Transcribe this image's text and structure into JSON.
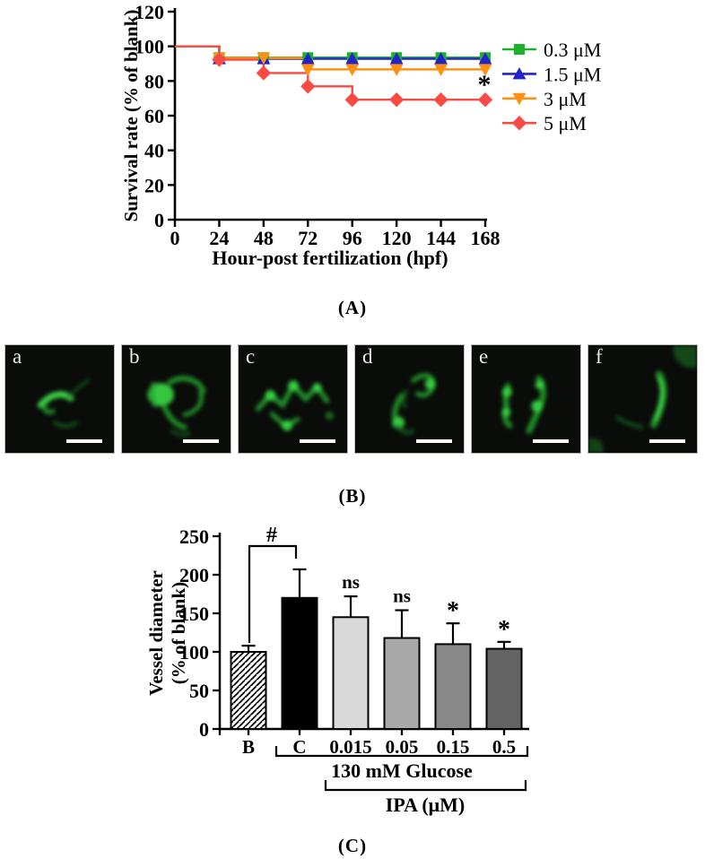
{
  "figure": {
    "captions": {
      "a": "(A)",
      "b": "(B)",
      "c": "(C)"
    }
  },
  "panelB": {
    "labels": [
      "a",
      "b",
      "c",
      "d",
      "e",
      "f"
    ]
  },
  "chart_data": [
    {
      "id": "A",
      "type": "line",
      "subtype": "kaplan-meier-step",
      "xlabel": "Hour-post fertilization (hpf)",
      "ylabel": "Survival rate (% of blank)",
      "xlim": [
        0,
        168
      ],
      "ylim": [
        0,
        120
      ],
      "xticks": [
        0,
        24,
        48,
        72,
        96,
        120,
        144,
        168
      ],
      "yticks": [
        0,
        20,
        40,
        60,
        80,
        100,
        120
      ],
      "grid": false,
      "legend_position": "right",
      "marker_x": [
        24,
        48,
        72,
        96,
        120,
        144,
        168
      ],
      "series": [
        {
          "name": "0.3 μM",
          "color": "#1db22a",
          "marker": "square",
          "steps": [
            [
              0,
              100
            ],
            [
              24,
              93.5
            ]
          ]
        },
        {
          "name": "1.5 μM",
          "color": "#2323cb",
          "marker": "triangle-up",
          "steps": [
            [
              0,
              100
            ],
            [
              24,
              92.8
            ]
          ]
        },
        {
          "name": "3 μM",
          "color": "#ff9014",
          "marker": "triangle-down",
          "steps": [
            [
              0,
              100
            ],
            [
              24,
              93.3
            ],
            [
              72,
              86.7
            ]
          ]
        },
        {
          "name": "5 μM",
          "color": "#f94a44",
          "marker": "diamond",
          "steps": [
            [
              0,
              100
            ],
            [
              24,
              92.3
            ],
            [
              48,
              84.6
            ],
            [
              72,
              76.9
            ],
            [
              96,
              69.2
            ]
          ]
        }
      ],
      "annotation": {
        "text": "*",
        "x": 166,
        "y": 76.5
      }
    },
    {
      "id": "C",
      "type": "bar",
      "ylabel": [
        "Vessel diameter",
        "(% of blank)"
      ],
      "ylim": [
        0,
        250
      ],
      "yticks": [
        0,
        50,
        100,
        150,
        200,
        250
      ],
      "categories": [
        "B",
        "C",
        "0.015",
        "0.05",
        "0.15",
        "0.5"
      ],
      "values": [
        100,
        170,
        145,
        118,
        110,
        104
      ],
      "errors_up": [
        8,
        37,
        27,
        36,
        27,
        9
      ],
      "bar_styles": [
        "hatched",
        "#000000",
        "#d9d9d9",
        "#a9a9a9",
        "#898989",
        "#646464"
      ],
      "annotations": [
        "",
        "",
        "ns",
        "ns",
        "*",
        "*"
      ],
      "comparison": {
        "symbol": "#",
        "from": "B",
        "to": "C"
      },
      "group_brackets": [
        {
          "label": "130 mM Glucose",
          "from_category": "C",
          "to_category": "0.5"
        },
        {
          "label": "IPA (μM)",
          "from_category": "0.015",
          "to_category": "0.5"
        }
      ]
    }
  ]
}
